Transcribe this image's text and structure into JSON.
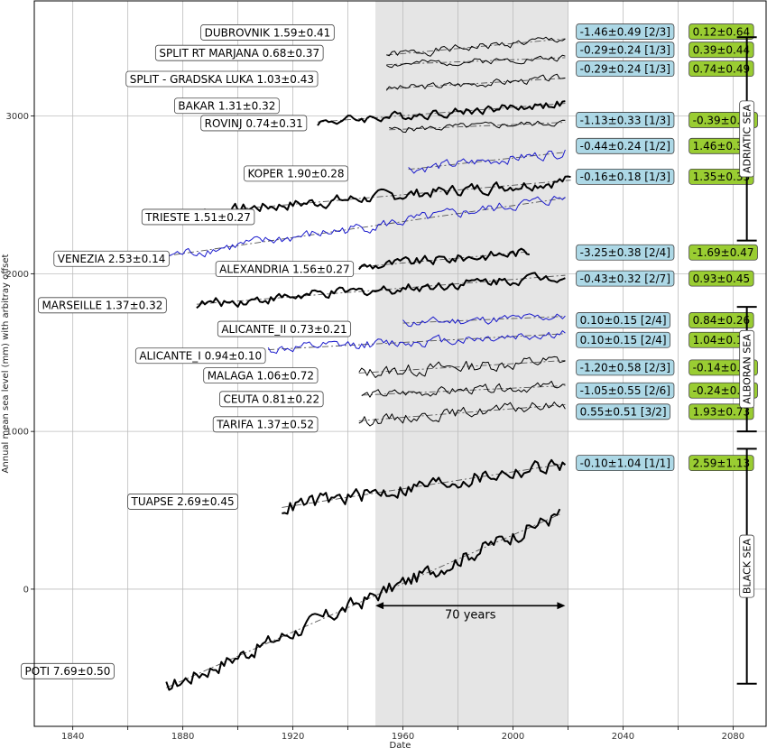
{
  "chart_data": {
    "type": "line",
    "xlabel": "Date",
    "ylabel": "Annual mean sea level (mm) with arbitray offset",
    "xlim": [
      1826,
      2092
    ],
    "ylim": [
      -870,
      3730
    ],
    "xticks": [
      1840,
      1860,
      1880,
      1900,
      1920,
      1940,
      1960,
      1980,
      2000,
      2020,
      2040,
      2060,
      2080
    ],
    "xtick_labels": [
      "1840",
      "",
      "1880",
      "",
      "1920",
      "",
      "1960",
      "",
      "2000",
      "",
      "2040",
      "",
      "2080"
    ],
    "yticks": [
      0,
      1000,
      2000,
      3000
    ],
    "ytick_labels": [
      "0",
      "1000",
      "2000",
      "3000"
    ],
    "grid": true,
    "shaded_period": [
      1950,
      2020
    ],
    "span_annotation": {
      "from": 1950,
      "to": 2019,
      "label": "70 years"
    },
    "colors": {
      "box_blue": "#add8e6",
      "box_green": "#9acd32",
      "shade": "#e5e5e5",
      "blue_series": "#1a1acc",
      "black_series": "#000000"
    },
    "regions": [
      {
        "label": "ADRIATIC SEA",
        "range": [
          2210,
          3500
        ]
      },
      {
        "label": "ALBORAN SEA",
        "range": [
          1000,
          1790
        ]
      },
      {
        "label": "BLACK SEA",
        "range": [
          -600,
          890
        ]
      }
    ],
    "series": [
      {
        "name": "DUBROVNIK 1.59±0.41",
        "color": "black",
        "width": 1.0,
        "start": 1954,
        "end": 2019,
        "offset": 3490,
        "trend": 1.59,
        "amp": 22,
        "seed": 1,
        "label_x": 1935,
        "label_y": 3530,
        "blue_text": "-1.46±0.49 [2/3]",
        "green_text": "0.12±0.64",
        "blue_y": 3535
      },
      {
        "name": "SPLIT RT MARJANA 0.68±0.37",
        "color": "black",
        "width": 1.0,
        "start": 1954,
        "end": 2019,
        "offset": 3370,
        "trend": 0.68,
        "amp": 18,
        "seed": 2,
        "label_x": 1931,
        "label_y": 3400,
        "blue_text": "-0.29±0.24 [1/3]",
        "green_text": "0.39±0.44",
        "blue_y": 3420
      },
      {
        "name": "SPLIT - GRADSKA LUKA 1.03±0.43",
        "color": "black",
        "width": 1.0,
        "start": 1954,
        "end": 2019,
        "offset": 3240,
        "trend": 1.03,
        "amp": 20,
        "seed": 3,
        "label_x": 1929,
        "label_y": 3235,
        "blue_text": "-0.29±0.24 [1/3]",
        "green_text": "0.74±0.49",
        "blue_y": 3300
      },
      {
        "name": "BAKAR 1.31±0.32",
        "color": "black",
        "width": 2.0,
        "start": 1929,
        "end": 2019,
        "offset": 3080,
        "trend": 1.31,
        "amp": 25,
        "seed": 4,
        "label_x": 1915,
        "label_y": 3065,
        "blue_text": "",
        "green_text": "",
        "blue_y": 0
      },
      {
        "name": "ROVINJ 0.74±0.31",
        "color": "black",
        "width": 1.0,
        "start": 1955,
        "end": 2019,
        "offset": 2960,
        "trend": 0.74,
        "amp": 18,
        "seed": 5,
        "label_x": 1925,
        "label_y": 2955,
        "blue_text": "-1.13±0.33 [1/3]",
        "green_text": "-0.39±0.45",
        "blue_y": 2975
      },
      {
        "name": "KOPER 1.90±0.28",
        "color": "blue",
        "width": 1.0,
        "start": 1962,
        "end": 2019,
        "offset": 2770,
        "trend": 1.9,
        "amp": 28,
        "seed": 6,
        "label_x": 1940,
        "label_y": 2635,
        "blue_text": "-0.44±0.24 [1/2]",
        "green_text": "1.46±0.37",
        "blue_y": 2810
      },
      {
        "name": "TRIESTE 1.51±0.27",
        "color": "black",
        "width": 2.0,
        "start": 1877,
        "end": 2021,
        "offset": 2590,
        "trend": 1.51,
        "amp": 32,
        "seed": 7,
        "label_x": 1906,
        "label_y": 2360,
        "blue_text": "-0.16±0.18 [1/3]",
        "green_text": "1.35±0.33",
        "blue_y": 2615
      },
      {
        "name": "VENEZIA 2.53±0.14",
        "color": "blue",
        "width": 1.0,
        "start": 1872,
        "end": 2019,
        "offset": 2480,
        "trend": 2.53,
        "amp": 30,
        "seed": 8,
        "label_x": 1875,
        "label_y": 2095,
        "blue_text": "",
        "green_text": "",
        "blue_y": 0
      },
      {
        "name": "ALEXANDRIA 1.56±0.27",
        "color": "black",
        "width": 2.0,
        "start": 1944,
        "end": 2006,
        "offset": 2160,
        "trend": 1.56,
        "amp": 28,
        "seed": 9,
        "label_x": 1942,
        "label_y": 2030,
        "blue_text": "-3.25±0.38 [2/4]",
        "green_text": "-1.69±0.47",
        "blue_y": 2135
      },
      {
        "name": "MARSEILLE 1.37±0.32",
        "color": "black",
        "width": 2.0,
        "start": 1885,
        "end": 2019,
        "offset": 1990,
        "trend": 1.37,
        "amp": 28,
        "seed": 10,
        "label_x": 1874,
        "label_y": 1800,
        "blue_text": "-0.43±0.32 [2/7]",
        "green_text": "0.93±0.45",
        "blue_y": 1970
      },
      {
        "name": "ALICANTE_II 0.73±0.21",
        "color": "blue",
        "width": 1.0,
        "start": 1960,
        "end": 2019,
        "offset": 1730,
        "trend": 0.73,
        "amp": 25,
        "seed": 11,
        "label_x": 1941,
        "label_y": 1650,
        "blue_text": "0.10±0.15 [2/4]",
        "green_text": "0.84±0.26",
        "blue_y": 1705
      },
      {
        "name": "ALICANTE_I 0.94±0.10",
        "color": "blue",
        "width": 1.0,
        "start": 1911,
        "end": 2019,
        "offset": 1620,
        "trend": 0.94,
        "amp": 28,
        "seed": 12,
        "label_x": 1910,
        "label_y": 1480,
        "blue_text": "0.10±0.15 [2/4]",
        "green_text": "1.04±0.18",
        "blue_y": 1580
      },
      {
        "name": "MALAGA 1.06±0.72",
        "color": "black",
        "width": 1.0,
        "start": 1944,
        "end": 2019,
        "offset": 1450,
        "trend": 1.06,
        "amp": 35,
        "seed": 13,
        "label_x": 1929,
        "label_y": 1355,
        "blue_text": "-1.20±0.58 [2/3]",
        "green_text": "-0.14±0.93",
        "blue_y": 1405
      },
      {
        "name": "CEUTA 0.81±0.22",
        "color": "black",
        "width": 1.0,
        "start": 1945,
        "end": 2019,
        "offset": 1290,
        "trend": 0.81,
        "amp": 25,
        "seed": 14,
        "label_x": 1931,
        "label_y": 1205,
        "blue_text": "-1.05±0.55 [2/6]",
        "green_text": "-0.24±0.59",
        "blue_y": 1260
      },
      {
        "name": "TARIFA 1.37±0.52",
        "color": "black",
        "width": 1.0,
        "start": 1944,
        "end": 2019,
        "offset": 1170,
        "trend": 1.37,
        "amp": 30,
        "seed": 15,
        "label_x": 1929,
        "label_y": 1045,
        "blue_text": "0.55±0.51 [3/2]",
        "green_text": "1.93±0.73",
        "blue_y": 1125
      },
      {
        "name": "TUAPSE 2.69±0.45",
        "color": "black",
        "width": 2.0,
        "start": 1916,
        "end": 2019,
        "offset": 795,
        "trend": 2.69,
        "amp": 45,
        "seed": 16,
        "label_x": 1900,
        "label_y": 555,
        "blue_text": "-0.10±1.04 [1/1]",
        "green_text": "2.59±1.13",
        "blue_y": 800
      },
      {
        "name": "POTI 7.69±0.50",
        "color": "black",
        "width": 2.0,
        "start": 1874,
        "end": 2017,
        "offset": 490,
        "trend": 7.69,
        "amp": 45,
        "seed": 17,
        "label_x": 1855,
        "label_y": -520,
        "blue_text": "",
        "green_text": "",
        "blue_y": 0
      }
    ]
  }
}
